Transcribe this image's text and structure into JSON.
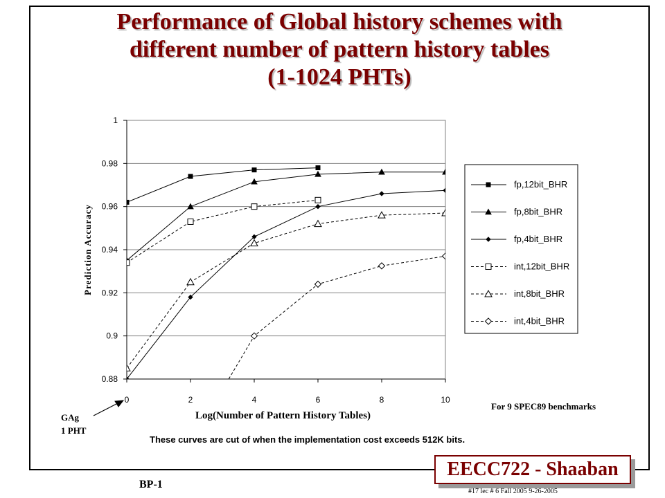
{
  "slide": {
    "title_lines": [
      "Performance of Global history schemes with",
      "different number of pattern history tables",
      "(1-1024 PHTs)"
    ],
    "benchmark_note": "For 9 SPEC89 benchmarks",
    "gag_label_line1": "GAg",
    "gag_label_line2": "1 PHT",
    "caption": "These curves are cut of when the implementation cost exceeds 512K bits.",
    "badge": "EECC722 - Shaaban",
    "slide_id": "BP-1",
    "footer_info": "#17   lec # 6   Fall 2005   9-26-2005",
    "accent_color": "#7a0000"
  },
  "chart_data": {
    "type": "line",
    "xlabel": "Log(Number of Pattern History Tables)",
    "ylabel": "Prediction Accuracy",
    "xlim": [
      0,
      10
    ],
    "ylim": [
      0.88,
      1.0
    ],
    "x_ticks": [
      "0",
      "2",
      "4",
      "6",
      "8",
      "10"
    ],
    "y_ticks": [
      "0.88",
      "0.9",
      "0.92",
      "0.94",
      "0.96",
      "0.98",
      "1"
    ],
    "grid": "horizontal",
    "legend_position": "right",
    "series": [
      {
        "name": "fp,12bit_BHR",
        "marker": "square-filled",
        "dash": "solid",
        "x": [
          0,
          2,
          4,
          6
        ],
        "y": [
          0.962,
          0.974,
          0.977,
          0.978
        ]
      },
      {
        "name": "fp,8bit_BHR",
        "marker": "triangle-filled",
        "dash": "solid",
        "x": [
          0,
          2,
          4,
          6,
          8,
          10
        ],
        "y": [
          0.935,
          0.96,
          0.9715,
          0.975,
          0.976,
          0.976
        ]
      },
      {
        "name": "fp,4bit_BHR",
        "marker": "diamond-filled",
        "dash": "solid",
        "x": [
          0,
          2,
          4,
          6,
          8,
          10
        ],
        "y": [
          0.88,
          0.918,
          0.946,
          0.96,
          0.966,
          0.9675
        ]
      },
      {
        "name": "int,12bit_BHR",
        "marker": "square-open",
        "dash": "dashed",
        "x": [
          0,
          2,
          4,
          6
        ],
        "y": [
          0.934,
          0.953,
          0.96,
          0.963
        ]
      },
      {
        "name": "int,8bit_BHR",
        "marker": "triangle-open",
        "dash": "dashed",
        "x": [
          0,
          2,
          4,
          6,
          8,
          10
        ],
        "y": [
          0.885,
          0.925,
          0.943,
          0.952,
          0.956,
          0.957
        ]
      },
      {
        "name": "int,4bit_BHR",
        "marker": "diamond-open",
        "dash": "dashed",
        "x": [
          3.2,
          4,
          6,
          8,
          10
        ],
        "y": [
          0.88,
          0.9,
          0.924,
          0.9325,
          0.937
        ]
      }
    ]
  }
}
